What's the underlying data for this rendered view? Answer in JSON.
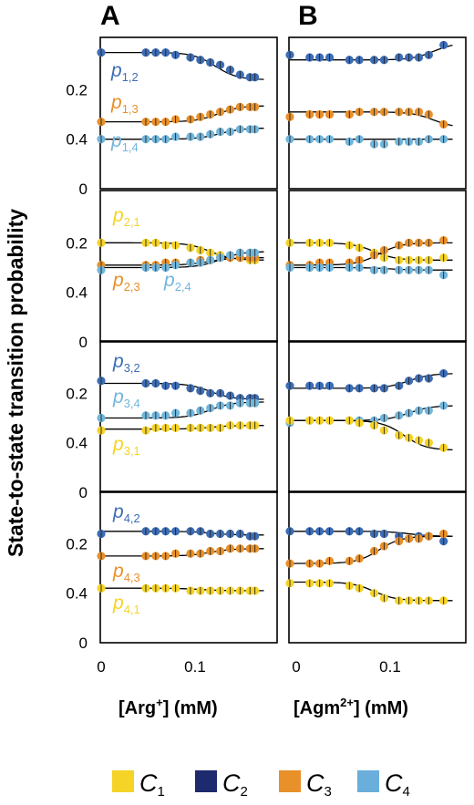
{
  "panel_letters": [
    "A",
    "B"
  ],
  "y_axis_label": "State-to-state transition probability",
  "x_axis_labels": {
    "left": {
      "text": "[Arg",
      "sup": "+",
      "tail": "] (mM)"
    },
    "right": {
      "text": "[Agm",
      "sup": "2+",
      "tail": "] (mM)"
    }
  },
  "x_ticks": [
    "0",
    "0.1"
  ],
  "y_ticks": [
    "0.2",
    "0.4",
    "0"
  ],
  "legend": [
    {
      "label": "C",
      "sub": "1",
      "color": "#f5d327"
    },
    {
      "label": "C",
      "sub": "2",
      "color": "#1d2a6e"
    },
    {
      "label": "C",
      "sub": "3",
      "color": "#e8902a"
    },
    {
      "label": "C",
      "sub": "4",
      "color": "#6aaedc"
    }
  ],
  "colors": {
    "c1": "#f5d327",
    "c2": "#3d6db5",
    "c3": "#e8902a",
    "c4": "#72b6dc",
    "fit": "#000000"
  },
  "chart_data": {
    "type": "scatter",
    "x_range": [
      0,
      0.17
    ],
    "y_range": [
      0,
      0.6
    ],
    "rows": [
      {
        "row": 1,
        "labels": [
          {
            "p": "p",
            "sub": "1,2",
            "series": "c2"
          },
          {
            "p": "p",
            "sub": "1,3",
            "series": "c3"
          },
          {
            "p": "p",
            "sub": "1,4",
            "series": "c4"
          }
        ],
        "left": {
          "x": [
            0,
            0.045,
            0.055,
            0.065,
            0.075,
            0.09,
            0.1,
            0.11,
            0.12,
            0.13,
            0.14,
            0.15,
            0.155
          ],
          "series": [
            {
              "color": "c2",
              "values": [
                0.55,
                0.55,
                0.55,
                0.55,
                0.54,
                0.53,
                0.52,
                0.51,
                0.5,
                0.48,
                0.46,
                0.45,
                0.45
              ],
              "fit": {
                "from": 0.55,
                "to": 0.44,
                "mid": 0.115
              }
            },
            {
              "color": "c3",
              "values": [
                0.27,
                0.27,
                0.27,
                0.27,
                0.28,
                0.28,
                0.29,
                0.3,
                0.31,
                0.32,
                0.33,
                0.33,
                0.33
              ],
              "fit": {
                "from": 0.27,
                "to": 0.335,
                "mid": 0.118
              }
            },
            {
              "color": "c4",
              "values": [
                0.2,
                0.2,
                0.2,
                0.2,
                0.21,
                0.21,
                0.21,
                0.22,
                0.23,
                0.23,
                0.24,
                0.24,
                0.24
              ],
              "fit": {
                "from": 0.2,
                "to": 0.245,
                "mid": 0.12
              }
            }
          ]
        },
        "right": {
          "x": [
            0,
            0.02,
            0.03,
            0.04,
            0.06,
            0.07,
            0.085,
            0.095,
            0.11,
            0.12,
            0.13,
            0.14,
            0.155
          ],
          "series": [
            {
              "color": "c2",
              "values": [
                0.54,
                0.53,
                0.53,
                0.53,
                0.52,
                0.52,
                0.52,
                0.52,
                0.53,
                0.53,
                0.53,
                0.54,
                0.58
              ],
              "fit": {
                "from": 0.52,
                "to": 0.59,
                "mid": 0.145
              }
            },
            {
              "color": "c3",
              "values": [
                0.29,
                0.3,
                0.3,
                0.3,
                0.3,
                0.31,
                0.31,
                0.31,
                0.31,
                0.31,
                0.31,
                0.3,
                0.26
              ],
              "fit": {
                "from": 0.31,
                "to": 0.245,
                "mid": 0.145
              }
            },
            {
              "color": "c4",
              "values": [
                0.2,
                0.2,
                0.2,
                0.2,
                0.19,
                0.2,
                0.18,
                0.18,
                0.19,
                0.19,
                0.19,
                0.2,
                0.2
              ],
              "fit": {
                "from": 0.2,
                "to": 0.2,
                "mid": 0.1
              }
            }
          ]
        }
      },
      {
        "row": 2,
        "labels": [
          {
            "p": "p",
            "sub": "2,1",
            "series": "c1"
          },
          {
            "p": "p",
            "sub": "2,3",
            "series": "c3"
          },
          {
            "p": "p",
            "sub": "2,4",
            "series": "c4"
          }
        ],
        "left": {
          "x": [
            0,
            0.045,
            0.055,
            0.065,
            0.075,
            0.09,
            0.1,
            0.11,
            0.12,
            0.13,
            0.14,
            0.15,
            0.155
          ],
          "series": [
            {
              "color": "c1",
              "values": [
                0.4,
                0.4,
                0.4,
                0.39,
                0.39,
                0.38,
                0.37,
                0.36,
                0.35,
                0.34,
                0.34,
                0.33,
                0.33
              ],
              "fit": {
                "from": 0.4,
                "to": 0.33,
                "mid": 0.11
              }
            },
            {
              "color": "c3",
              "values": [
                0.31,
                0.31,
                0.31,
                0.32,
                0.32,
                0.32,
                0.33,
                0.33,
                0.34,
                0.34,
                0.34,
                0.34,
                0.34
              ],
              "fit": {
                "from": 0.31,
                "to": 0.34,
                "mid": 0.11
              }
            },
            {
              "color": "c4",
              "values": [
                0.29,
                0.3,
                0.3,
                0.3,
                0.31,
                0.32,
                0.32,
                0.33,
                0.34,
                0.35,
                0.36,
                0.36,
                0.36
              ],
              "fit": {
                "from": 0.3,
                "to": 0.365,
                "mid": 0.12
              }
            }
          ]
        },
        "right": {
          "x": [
            0,
            0.02,
            0.03,
            0.04,
            0.06,
            0.07,
            0.085,
            0.095,
            0.11,
            0.12,
            0.13,
            0.14,
            0.155
          ],
          "series": [
            {
              "color": "c1",
              "values": [
                0.4,
                0.4,
                0.4,
                0.4,
                0.39,
                0.38,
                0.36,
                0.34,
                0.33,
                0.33,
                0.33,
                0.33,
                0.34
              ],
              "fit": {
                "from": 0.4,
                "to": 0.33,
                "mid": 0.085
              }
            },
            {
              "color": "c3",
              "values": [
                0.31,
                0.31,
                0.32,
                0.32,
                0.32,
                0.33,
                0.35,
                0.37,
                0.39,
                0.4,
                0.4,
                0.4,
                0.41
              ],
              "fit": {
                "from": 0.31,
                "to": 0.4,
                "mid": 0.09
              }
            },
            {
              "color": "c4",
              "values": [
                0.3,
                0.3,
                0.3,
                0.3,
                0.3,
                0.3,
                0.29,
                0.29,
                0.29,
                0.29,
                0.29,
                0.29,
                0.27
              ],
              "fit": {
                "from": 0.3,
                "to": 0.29,
                "mid": 0.1
              }
            }
          ]
        }
      },
      {
        "row": 3,
        "labels": [
          {
            "p": "p",
            "sub": "3,2",
            "series": "c2"
          },
          {
            "p": "p",
            "sub": "3,4",
            "series": "c4"
          },
          {
            "p": "p",
            "sub": "3,1",
            "series": "c1"
          }
        ],
        "left": {
          "x": [
            0,
            0.045,
            0.055,
            0.065,
            0.075,
            0.09,
            0.1,
            0.11,
            0.12,
            0.13,
            0.14,
            0.15,
            0.155
          ],
          "series": [
            {
              "color": "c2",
              "values": [
                0.45,
                0.44,
                0.44,
                0.43,
                0.43,
                0.42,
                0.41,
                0.4,
                0.4,
                0.39,
                0.38,
                0.38,
                0.38
              ],
              "fit": {
                "from": 0.44,
                "to": 0.375,
                "mid": 0.11
              }
            },
            {
              "color": "c4",
              "values": [
                0.3,
                0.31,
                0.31,
                0.31,
                0.32,
                0.32,
                0.33,
                0.34,
                0.35,
                0.35,
                0.36,
                0.36,
                0.36
              ],
              "fit": {
                "from": 0.3,
                "to": 0.365,
                "mid": 0.11
              }
            },
            {
              "color": "c1",
              "values": [
                0.25,
                0.25,
                0.26,
                0.26,
                0.26,
                0.26,
                0.26,
                0.26,
                0.26,
                0.27,
                0.27,
                0.27,
                0.27
              ],
              "fit": {
                "from": 0.255,
                "to": 0.27,
                "mid": 0.11
              }
            }
          ]
        },
        "right": {
          "x": [
            0,
            0.02,
            0.03,
            0.04,
            0.06,
            0.07,
            0.085,
            0.095,
            0.11,
            0.12,
            0.13,
            0.14,
            0.155
          ],
          "series": [
            {
              "color": "c2",
              "values": [
                0.43,
                0.43,
                0.43,
                0.43,
                0.42,
                0.42,
                0.42,
                0.42,
                0.43,
                0.45,
                0.46,
                0.46,
                0.48
              ],
              "fit": {
                "from": 0.42,
                "to": 0.48,
                "mid": 0.12
              }
            },
            {
              "color": "c4",
              "values": [
                0.28,
                0.29,
                0.29,
                0.29,
                0.29,
                0.29,
                0.29,
                0.3,
                0.31,
                0.32,
                0.33,
                0.33,
                0.35
              ],
              "fit": {
                "from": 0.29,
                "to": 0.35,
                "mid": 0.12
              }
            },
            {
              "color": "c1",
              "values": [
                0.29,
                0.29,
                0.29,
                0.29,
                0.29,
                0.28,
                0.27,
                0.25,
                0.23,
                0.22,
                0.21,
                0.2,
                0.18
              ],
              "fit": {
                "from": 0.29,
                "to": 0.17,
                "mid": 0.115
              }
            }
          ]
        }
      },
      {
        "row": 4,
        "labels": [
          {
            "p": "p",
            "sub": "4,2",
            "series": "c2"
          },
          {
            "p": "p",
            "sub": "4,3",
            "series": "c3"
          },
          {
            "p": "p",
            "sub": "4,1",
            "series": "c1"
          }
        ],
        "left": {
          "x": [
            0,
            0.045,
            0.055,
            0.065,
            0.075,
            0.09,
            0.1,
            0.11,
            0.12,
            0.13,
            0.14,
            0.15,
            0.155
          ],
          "series": [
            {
              "color": "c2",
              "values": [
                0.44,
                0.45,
                0.45,
                0.45,
                0.45,
                0.45,
                0.45,
                0.44,
                0.44,
                0.44,
                0.44,
                0.43,
                0.43
              ],
              "fit": {
                "from": 0.45,
                "to": 0.435,
                "mid": 0.11
              }
            },
            {
              "color": "c3",
              "values": [
                0.35,
                0.35,
                0.35,
                0.35,
                0.36,
                0.36,
                0.36,
                0.37,
                0.37,
                0.38,
                0.38,
                0.38,
                0.38
              ],
              "fit": {
                "from": 0.35,
                "to": 0.38,
                "mid": 0.11
              }
            },
            {
              "color": "c1",
              "values": [
                0.22,
                0.22,
                0.22,
                0.22,
                0.22,
                0.21,
                0.21,
                0.21,
                0.21,
                0.21,
                0.21,
                0.21,
                0.21
              ],
              "fit": {
                "from": 0.22,
                "to": 0.21,
                "mid": 0.1
              }
            }
          ]
        },
        "right": {
          "x": [
            0,
            0.02,
            0.03,
            0.04,
            0.06,
            0.07,
            0.085,
            0.095,
            0.11,
            0.12,
            0.13,
            0.14,
            0.155
          ],
          "series": [
            {
              "color": "c2",
              "values": [
                0.45,
                0.45,
                0.45,
                0.45,
                0.45,
                0.45,
                0.44,
                0.44,
                0.43,
                0.42,
                0.43,
                0.43,
                0.41
              ],
              "fit": {
                "from": 0.45,
                "to": 0.43,
                "mid": 0.12
              }
            },
            {
              "color": "c3",
              "values": [
                0.32,
                0.32,
                0.32,
                0.33,
                0.33,
                0.34,
                0.37,
                0.39,
                0.41,
                0.42,
                0.42,
                0.43,
                0.44
              ],
              "fit": {
                "from": 0.32,
                "to": 0.43,
                "mid": 0.09
              }
            },
            {
              "color": "c1",
              "values": [
                0.24,
                0.24,
                0.24,
                0.24,
                0.23,
                0.22,
                0.2,
                0.18,
                0.17,
                0.17,
                0.17,
                0.17,
                0.17
              ],
              "fit": {
                "from": 0.245,
                "to": 0.17,
                "mid": 0.085
              }
            }
          ]
        }
      }
    ]
  }
}
